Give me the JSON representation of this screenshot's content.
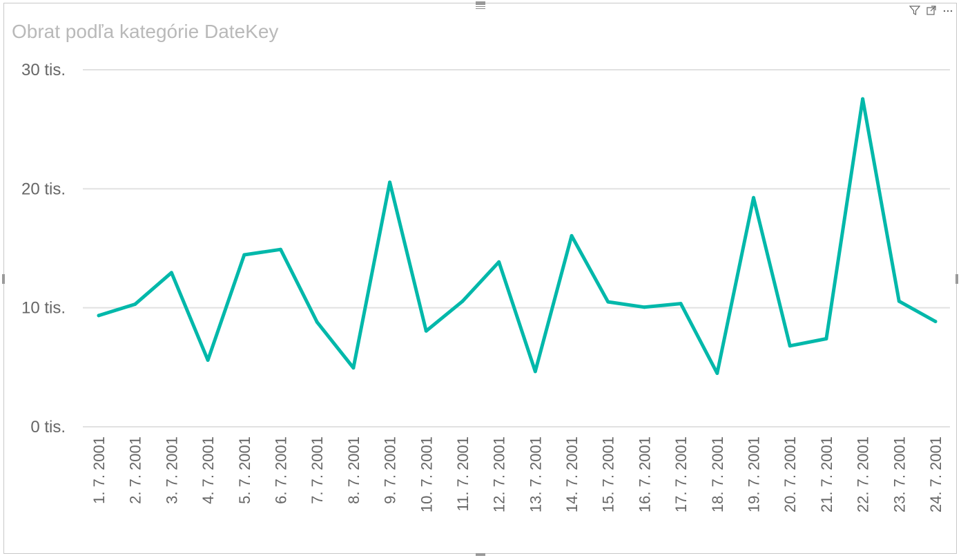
{
  "visual": {
    "title": "Obrat podľa kategórie DateKey",
    "toolbar": [
      {
        "name": "filter-icon"
      },
      {
        "name": "focus-mode-icon"
      },
      {
        "name": "more-options-icon"
      }
    ]
  },
  "chart_data": {
    "type": "line",
    "title": "Obrat podľa kategórie DateKey",
    "xlabel": "",
    "ylabel": "",
    "ylim": [
      0,
      30000
    ],
    "y_ticks": [
      {
        "value": 0,
        "label": "0 tis."
      },
      {
        "value": 10000,
        "label": "10 tis."
      },
      {
        "value": 20000,
        "label": "20 tis."
      },
      {
        "value": 30000,
        "label": "30 tis."
      }
    ],
    "grid": true,
    "legend": "none",
    "categories": [
      "1. 7. 2001",
      "2. 7. 2001",
      "3. 7. 2001",
      "4. 7. 2001",
      "5. 7. 2001",
      "6. 7. 2001",
      "7. 7. 2001",
      "8. 7. 2001",
      "9. 7. 2001",
      "10. 7. 2001",
      "11. 7. 2001",
      "12. 7. 2001",
      "13. 7. 2001",
      "14. 7. 2001",
      "15. 7. 2001",
      "16. 7. 2001",
      "17. 7. 2001",
      "18. 7. 2001",
      "19. 7. 2001",
      "20. 7. 2001",
      "21. 7. 2001",
      "22. 7. 2001",
      "23. 7. 2001",
      "24. 7. 2001"
    ],
    "series": [
      {
        "color": "#01B8AA",
        "values": [
          9350,
          10300,
          12950,
          5600,
          14450,
          14900,
          8800,
          4950,
          20550,
          8050,
          10550,
          13850,
          4650,
          16050,
          10500,
          10050,
          10350,
          4500,
          19250,
          6800,
          7400,
          27550,
          10550,
          8850
        ]
      }
    ]
  }
}
